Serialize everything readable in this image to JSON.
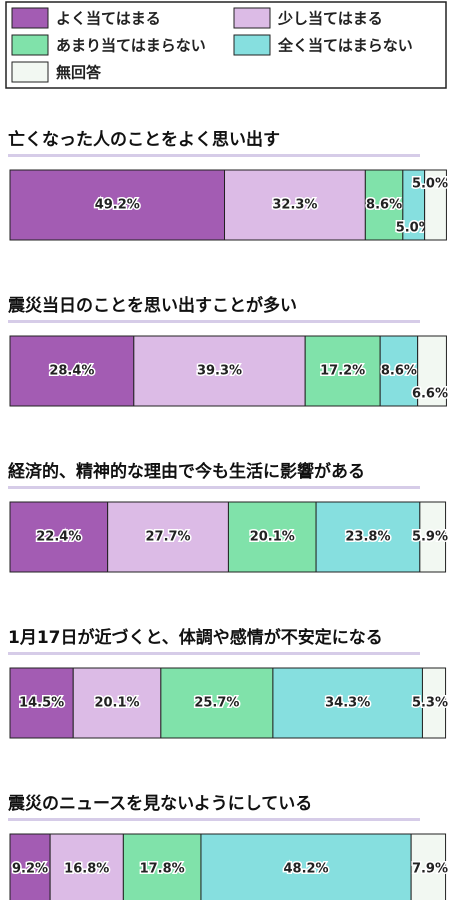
{
  "chart_data": {
    "type": "stacked-bar",
    "categories": [
      "亡くなった人のことをよく思い出す",
      "震災当日のことを思い出すことが多い",
      "経済的、精神的な理由で今も生活に影響がある",
      "1月17日が近づくと、体調や感情が不安定になる",
      "震災のニュースを見ないようにしている"
    ],
    "xlim": [
      0,
      100
    ],
    "series": [
      {
        "name": "よく当てはまる",
        "color": "#a35cb3",
        "values": [
          49.2,
          28.4,
          22.4,
          14.5,
          9.2
        ],
        "value_labels": [
          "49.2%",
          "28.4%",
          "22.4%",
          "14.5%",
          "9.2%"
        ]
      },
      {
        "name": "少し当てはまる",
        "color": "#dcbbe6",
        "values": [
          32.3,
          39.3,
          27.7,
          20.1,
          16.8
        ],
        "value_labels": [
          "32.3%",
          "39.3%",
          "27.7%",
          "20.1%",
          "16.8%"
        ]
      },
      {
        "name": "あまり当てはまらない",
        "color": "#80e2aa",
        "values": [
          8.6,
          17.2,
          20.1,
          25.7,
          17.8
        ],
        "value_labels": [
          "8.6%",
          "17.2%",
          "20.1%",
          "25.7%",
          "17.8%"
        ]
      },
      {
        "name": "全く当てはまらない",
        "color": "#86dfdf",
        "values": [
          5.0,
          8.6,
          23.8,
          34.3,
          48.2
        ],
        "value_labels": [
          "5.0%",
          "8.6%",
          "23.8%",
          "34.3%",
          "48.2%"
        ]
      },
      {
        "name": "無回答",
        "color": "#f2f8f2",
        "values": [
          5.0,
          6.6,
          5.9,
          5.3,
          7.9
        ],
        "value_labels": [
          "5.0%",
          "6.6%",
          "5.9%",
          "5.3%",
          "7.9%"
        ]
      }
    ]
  }
}
